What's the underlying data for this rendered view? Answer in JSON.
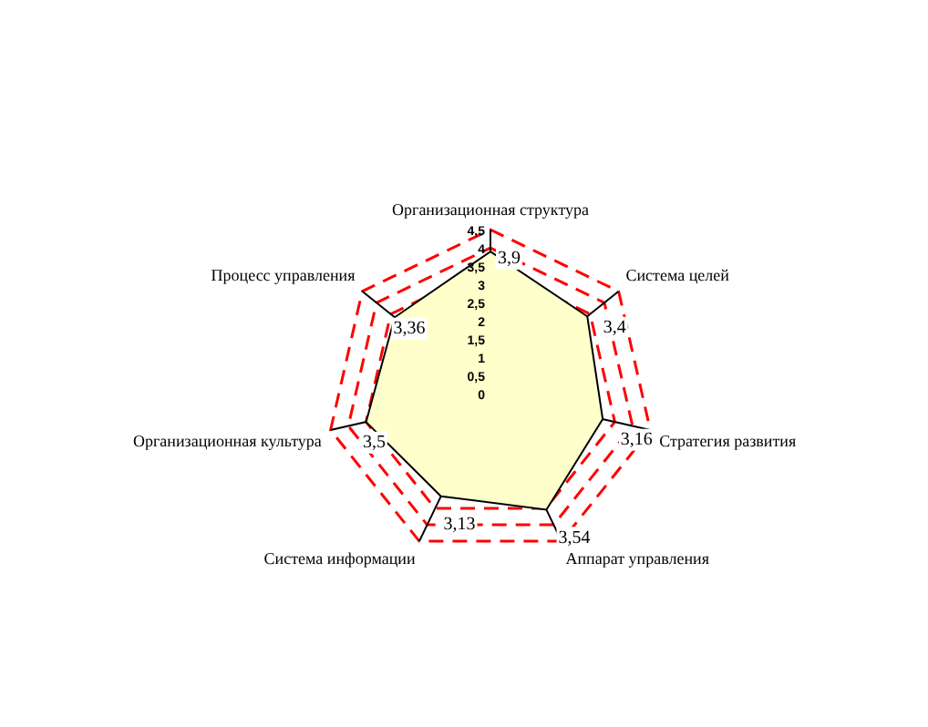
{
  "chart_data": {
    "type": "radar",
    "categories": [
      "Организационная структура",
      "Система целей",
      "Стратегия развития",
      "Аппарат управления",
      "Система информации",
      "Организационная культура",
      "Процесс управления"
    ],
    "series": [
      {
        "color": "#ffffcc",
        "values": [
          3.9,
          3.4,
          3.16,
          3.54,
          3.13,
          3.5,
          3.36
        ],
        "value_labels": [
          "3,9",
          "3,4",
          "3,16",
          "3,54",
          "3,13",
          "3,5",
          "3,36"
        ]
      }
    ],
    "ylim": [
      0,
      4.5
    ],
    "yticks": [
      0,
      {
        "value": 0.5,
        "label": "0,5"
      },
      1,
      {
        "value": 1.5,
        "label": "1,5"
      },
      2,
      {
        "value": 2.5,
        "label": "2,5"
      },
      3,
      {
        "value": 3.5,
        "label": "3,5"
      },
      4,
      {
        "value": 4.5,
        "label": "4,5"
      }
    ],
    "grid": true,
    "legend": false
  }
}
